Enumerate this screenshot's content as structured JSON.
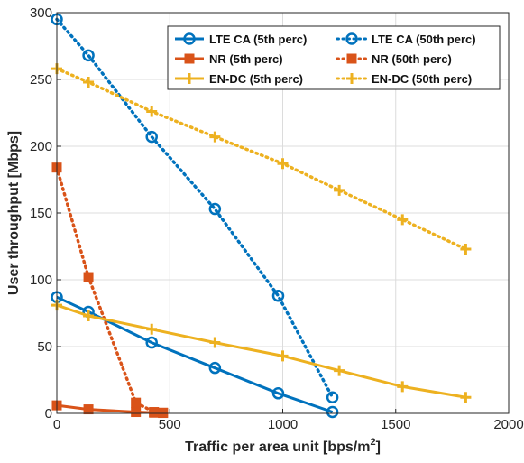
{
  "chart_data": {
    "type": "line",
    "xlabel": "Traffic per area unit [bps/m",
    "xlabel_sup": "2",
    "xlabel_close": "]",
    "ylabel": "User throughput [Mbps]",
    "xlim": [
      0,
      2000
    ],
    "ylim": [
      0,
      300
    ],
    "x_ticks": [
      0,
      500,
      1000,
      1500,
      2000
    ],
    "y_ticks": [
      0,
      50,
      100,
      150,
      200,
      250,
      300
    ],
    "grid": true,
    "legend_position": "top-right",
    "legend_columns": 2,
    "series": [
      {
        "name": "LTE CA (5th perc)",
        "color": "#0072BD",
        "marker": "circle",
        "line": "solid",
        "points": [
          [
            0,
            87
          ],
          [
            140,
            76
          ],
          [
            420,
            53
          ],
          [
            700,
            34
          ],
          [
            980,
            15
          ],
          [
            1220,
            1
          ]
        ]
      },
      {
        "name": "LTE CA (50th perc)",
        "color": "#0072BD",
        "marker": "circle",
        "line": "dotted",
        "points": [
          [
            0,
            295
          ],
          [
            140,
            268
          ],
          [
            420,
            207
          ],
          [
            700,
            153
          ],
          [
            980,
            88
          ],
          [
            1220,
            12
          ]
        ]
      },
      {
        "name": "NR (5th perc)",
        "color": "#D95319",
        "marker": "square",
        "line": "solid",
        "points": [
          [
            0,
            6
          ],
          [
            140,
            3
          ],
          [
            350,
            1
          ],
          [
            430,
            0.5
          ],
          [
            470,
            0.3
          ]
        ]
      },
      {
        "name": "NR (50th perc)",
        "color": "#D95319",
        "marker": "square",
        "line": "dotted",
        "points": [
          [
            0,
            184
          ],
          [
            140,
            102
          ],
          [
            350,
            8
          ],
          [
            430,
            1
          ],
          [
            470,
            0.5
          ]
        ]
      },
      {
        "name": "EN-DC (5th perc)",
        "color": "#EDB120",
        "marker": "plus",
        "line": "solid",
        "points": [
          [
            0,
            81
          ],
          [
            140,
            73
          ],
          [
            420,
            63
          ],
          [
            700,
            53
          ],
          [
            1000,
            43
          ],
          [
            1250,
            32
          ],
          [
            1530,
            20
          ],
          [
            1810,
            12
          ]
        ]
      },
      {
        "name": "EN-DC (50th perc)",
        "color": "#EDB120",
        "marker": "plus",
        "line": "dotted",
        "points": [
          [
            0,
            258
          ],
          [
            140,
            248
          ],
          [
            420,
            226
          ],
          [
            700,
            207
          ],
          [
            1000,
            187
          ],
          [
            1250,
            167
          ],
          [
            1530,
            145
          ],
          [
            1810,
            123
          ]
        ]
      }
    ]
  }
}
